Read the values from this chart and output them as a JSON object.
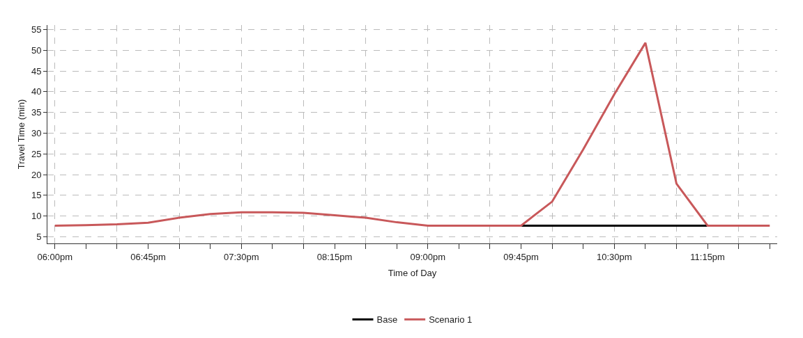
{
  "chart_data": {
    "type": "line",
    "xlabel": "Time of Day",
    "ylabel": "Travel Time (min)",
    "x": [
      18,
      18.25,
      18.5,
      18.75,
      19,
      19.25,
      19.5,
      19.75,
      20,
      20.25,
      20.5,
      20.75,
      21,
      21.25,
      21.5,
      21.75,
      22,
      22.25,
      22.5,
      22.75,
      23,
      23.25,
      23.5,
      23.75
    ],
    "series": [
      {
        "name": "Base",
        "color": "#000000",
        "values": [
          null,
          null,
          null,
          null,
          null,
          null,
          null,
          null,
          null,
          null,
          null,
          null,
          null,
          null,
          null,
          7.7,
          7.7,
          7.7,
          7.7,
          7.7,
          7.7,
          7.7,
          null,
          null
        ]
      },
      {
        "name": "Scenario 1",
        "color": "#c8585a",
        "values": [
          7.7,
          7.8,
          8.0,
          8.4,
          9.6,
          10.5,
          10.9,
          10.9,
          10.8,
          10.2,
          9.6,
          8.5,
          7.7,
          7.7,
          7.7,
          7.7,
          13.5,
          26.1,
          39.4,
          51.8,
          17.8,
          7.7,
          7.7,
          7.7
        ]
      }
    ],
    "xlim": [
      17.94,
      23.81
    ],
    "xticks": [
      {
        "value": 18,
        "label": "06:00pm"
      },
      {
        "value": 18.25,
        "label": null
      },
      {
        "value": 18.5,
        "label": null
      },
      {
        "value": 18.75,
        "label": "06:45pm"
      },
      {
        "value": 19,
        "label": null
      },
      {
        "value": 19.25,
        "label": null
      },
      {
        "value": 19.5,
        "label": "07:30pm"
      },
      {
        "value": 19.75,
        "label": null
      },
      {
        "value": 20,
        "label": null
      },
      {
        "value": 20.25,
        "label": "08:15pm"
      },
      {
        "value": 20.5,
        "label": null
      },
      {
        "value": 20.75,
        "label": null
      },
      {
        "value": 21,
        "label": "09:00pm"
      },
      {
        "value": 21.25,
        "label": null
      },
      {
        "value": 21.5,
        "label": null
      },
      {
        "value": 21.75,
        "label": "09:45pm"
      },
      {
        "value": 22,
        "label": null
      },
      {
        "value": 22.25,
        "label": null
      },
      {
        "value": 22.5,
        "label": "10:30pm"
      },
      {
        "value": 22.75,
        "label": null
      },
      {
        "value": 23,
        "label": null
      },
      {
        "value": 23.25,
        "label": "11:15pm"
      },
      {
        "value": 23.5,
        "label": null
      },
      {
        "value": 23.75,
        "label": null
      }
    ],
    "ylim": [
      3.4,
      56.1
    ],
    "yticks": [
      5,
      10,
      15,
      20,
      25,
      30,
      35,
      40,
      45,
      50,
      55
    ],
    "grid": true,
    "legend": "bottom",
    "marker": "none",
    "line_style": "solid"
  }
}
